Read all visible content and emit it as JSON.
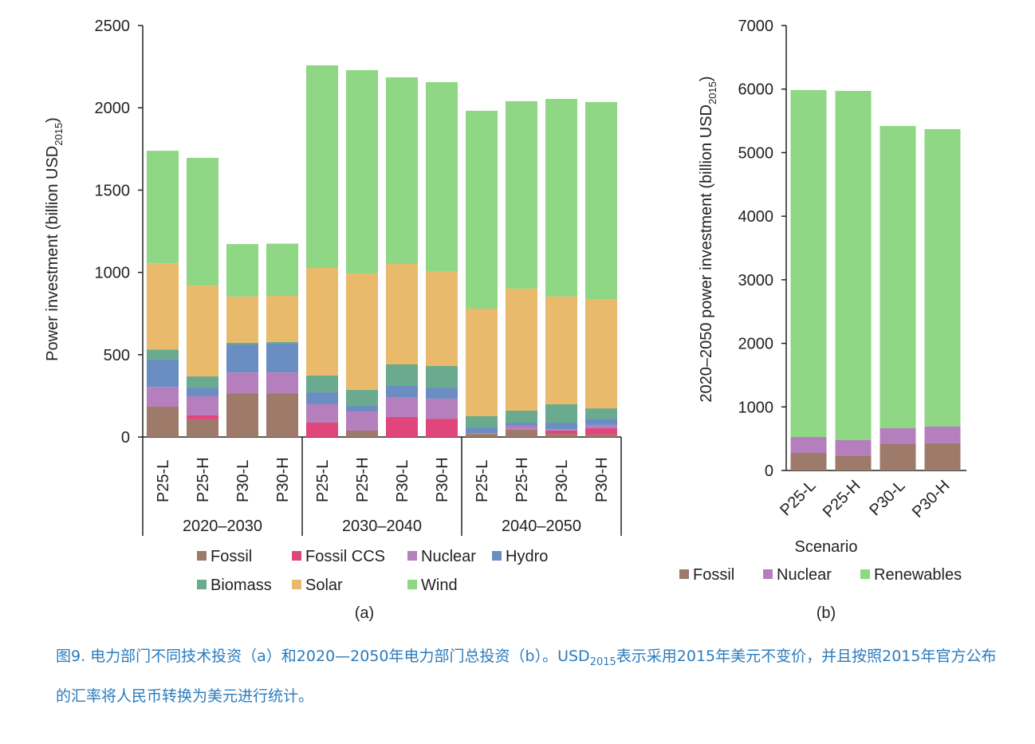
{
  "chart_data": [
    {
      "type": "stacked-bar",
      "ylabel": {
        "text": "Power investment (billion USD",
        "sub": "2015",
        "end": ")"
      },
      "panel": "(a)",
      "categories": [
        "P25-L",
        "P25-H",
        "P30-L",
        "P30-H",
        "P25-L",
        "P25-H",
        "P30-L",
        "P30-H",
        "P25-L",
        "P25-H",
        "P30-L",
        "P30-H"
      ],
      "groups": [
        "2020–2030",
        "2030–2040",
        "2040–2050"
      ],
      "ylim": [
        0,
        2500
      ],
      "yticks": [
        0,
        500,
        1000,
        1500,
        2000,
        2500
      ],
      "grid": false,
      "series": [
        {
          "name": "Fossil",
          "color": "#9e7a6b",
          "values": [
            184,
            107,
            266,
            266,
            0,
            39,
            0,
            0,
            19,
            44,
            19,
            15
          ]
        },
        {
          "name": "Fossil CCS",
          "color": "#e0457b",
          "values": [
            0,
            24,
            0,
            0,
            87,
            0,
            121,
            111,
            0,
            0,
            20,
            38
          ]
        },
        {
          "name": "Nuclear",
          "color": "#b57fbd",
          "values": [
            120,
            116,
            126,
            126,
            112,
            116,
            121,
            122,
            5,
            24,
            9,
            20
          ]
        },
        {
          "name": "Hydro",
          "color": "#6a8ec2",
          "values": [
            170,
            53,
            170,
            175,
            72,
            34,
            68,
            67,
            34,
            19,
            39,
            38
          ]
        },
        {
          "name": "Biomass",
          "color": "#6aaa8e",
          "values": [
            58,
            68,
            10,
            10,
            102,
            97,
            131,
            131,
            68,
            73,
            112,
            63
          ]
        },
        {
          "name": "Solar",
          "color": "#e9ba6b",
          "values": [
            523,
            552,
            281,
            280,
            654,
            707,
            610,
            577,
            654,
            741,
            654,
            664
          ]
        },
        {
          "name": "Wind",
          "color": "#8fd685",
          "values": [
            684,
            776,
            319,
            318,
            1231,
            1236,
            1134,
            1148,
            1202,
            1139,
            1201,
            1197
          ]
        }
      ]
    },
    {
      "type": "stacked-bar",
      "ylabel": {
        "text": "2020–2050 power investment (billion USD",
        "sub": "2015",
        "end": ")"
      },
      "xlabel": "Scenario",
      "panel": "(b)",
      "categories": [
        "P25-L",
        "P25-H",
        "P30-L",
        "P30-H"
      ],
      "ylim": [
        0,
        7000
      ],
      "yticks": [
        0,
        1000,
        2000,
        3000,
        4000,
        5000,
        6000,
        7000
      ],
      "grid": false,
      "series": [
        {
          "name": "Fossil",
          "color": "#9e7a6b",
          "values": [
            276,
            226,
            414,
            427
          ]
        },
        {
          "name": "Nuclear",
          "color": "#b57fbd",
          "values": [
            251,
            251,
            251,
            263
          ]
        },
        {
          "name": "Renewables",
          "color": "#8fd685",
          "values": [
            5458,
            5495,
            4755,
            4680
          ]
        }
      ]
    }
  ],
  "caption": {
    "text": "图9. 电力部门不同技术投资（a）和2020—2050年电力部门总投资（b）。USD",
    "sub": "2015",
    "end": "表示采用2015年美元不变价，并且按照2015年官方公布的汇率将人民币转换为美元进行统计。"
  }
}
